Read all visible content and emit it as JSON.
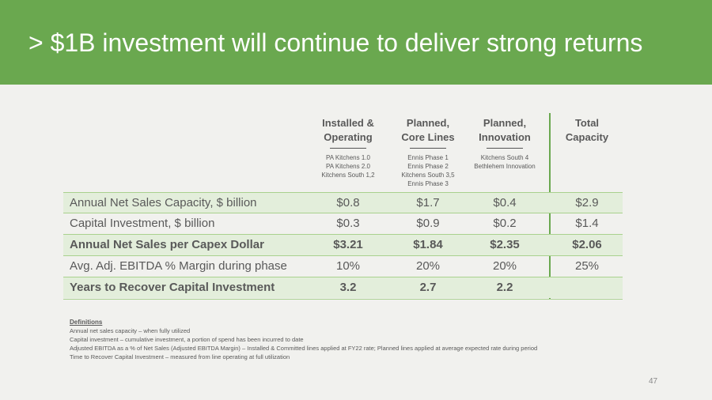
{
  "header": {
    "title": "> $1B investment will continue to deliver strong returns"
  },
  "table": {
    "columns": [
      {
        "title": [
          "Installed &",
          "Operating"
        ],
        "items": [
          "PA Kitchens 1.0",
          "PA Kitchens 2.0",
          "Kitchens South 1,2"
        ]
      },
      {
        "title": [
          "Planned,",
          "Core Lines"
        ],
        "items": [
          "Ennis Phase 1",
          "Ennis Phase 2",
          "Kitchens South 3,5",
          "Ennis Phase 3"
        ]
      },
      {
        "title": [
          "Planned,",
          "Innovation"
        ],
        "items": [
          "Kitchens South 4",
          "Bethlehem Innovation"
        ]
      },
      {
        "title": [
          "Total",
          "Capacity"
        ]
      }
    ],
    "rows": [
      {
        "label": "Annual Net Sales Capacity, $ billion",
        "cells": [
          "$0.8",
          "$1.7",
          "$0.4",
          "$2.9"
        ]
      },
      {
        "label": "Capital Investment, $ billion",
        "cells": [
          "$0.3",
          "$0.9",
          "$0.2",
          "$1.4"
        ]
      },
      {
        "label": "Annual Net Sales per Capex Dollar",
        "cells": [
          "$3.21",
          "$1.84",
          "$2.35",
          "$2.06"
        ],
        "bold": true
      },
      {
        "label": "Avg. Adj. EBITDA % Margin during phase",
        "cells": [
          "10%",
          "20%",
          "20%",
          "25%"
        ]
      },
      {
        "label": "Years to Recover Capital Investment",
        "cells": [
          "3.2",
          "2.7",
          "2.2"
        ],
        "bold": true
      }
    ]
  },
  "definitions": {
    "heading": "Definitions",
    "lines": [
      "Annual net sales capacity – when fully utilized",
      "Capital investment – cumulative investment, a portion of spend has been incurred to date",
      "Adjusted EBITDA as a % of Net Sales (Adjusted EBITDA Margin) – Installed & Committed lines applied at FY22 rate; Planned lines applied at average expected rate during period",
      "Time to Recover Capital Investment – measured from line operating at full utilization"
    ]
  },
  "page_number": "47"
}
